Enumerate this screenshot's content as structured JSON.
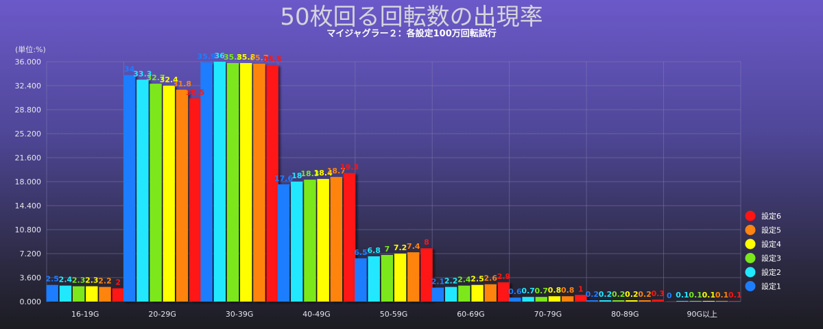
{
  "chart_data": {
    "type": "bar",
    "title": "50枚回る回転数の出現率",
    "subtitle": "マイジャグラー２：各設定100万回転試行",
    "ylabel": "(単位:%)",
    "xlabel": "",
    "ylim": [
      0,
      36
    ],
    "yticks": [
      "0.000",
      "3.600",
      "7.200",
      "10.800",
      "14.400",
      "18.000",
      "21.600",
      "25.200",
      "28.800",
      "32.400",
      "36.000"
    ],
    "grid": true,
    "legend_position": "right",
    "categories": [
      "16-19G",
      "20-29G",
      "30-39G",
      "40-49G",
      "50-59G",
      "60-69G",
      "70-79G",
      "80-89G",
      "90G以上"
    ],
    "series": [
      {
        "name": "設定1",
        "color": "#1e7dff",
        "values": [
          2.5,
          34,
          35.9,
          17.6,
          6.5,
          2.1,
          0.6,
          0.2,
          0
        ],
        "labels": [
          "2.5",
          "34",
          "35.9",
          "17.6",
          "6.5",
          "2.1",
          "0.6",
          "0.2",
          "0"
        ]
      },
      {
        "name": "設定2",
        "color": "#22e8ff",
        "values": [
          2.4,
          33.3,
          36,
          18,
          6.8,
          2.2,
          0.7,
          0.2,
          0.1
        ],
        "labels": [
          "2.4",
          "33.3",
          "36",
          "18",
          "6.8",
          "2.2",
          "0.7",
          "0.2",
          "0.1"
        ]
      },
      {
        "name": "設定3",
        "color": "#7be81c",
        "values": [
          2.3,
          32.7,
          35.8,
          18.3,
          7,
          2.4,
          0.7,
          0.2,
          0.1
        ],
        "labels": [
          "2.3",
          "32.7",
          "35.8",
          "18.3",
          "7",
          "2.4",
          "0.7",
          "0.2",
          "0.1"
        ]
      },
      {
        "name": "設定4",
        "color": "#ffff00",
        "values": [
          2.3,
          32.4,
          35.8,
          18.4,
          7.2,
          2.5,
          0.8,
          0.2,
          0.1
        ],
        "labels": [
          "2.3",
          "32.4",
          "35.8",
          "18.4",
          "7.2",
          "2.5",
          "0.8",
          "0.2",
          "0.1"
        ]
      },
      {
        "name": "設定5",
        "color": "#ff8410",
        "values": [
          2.2,
          31.8,
          35.7,
          18.7,
          7.4,
          2.6,
          0.8,
          0.2,
          0.1
        ],
        "labels": [
          "2.2",
          "31.8",
          "35.7",
          "18.7",
          "7.4",
          "2.6",
          "0.8",
          "0.2",
          "0.1"
        ]
      },
      {
        "name": "設定6",
        "color": "#ff1414",
        "values": [
          2,
          30.5,
          35.5,
          19.3,
          8,
          2.9,
          1,
          0.3,
          0.1
        ],
        "labels": [
          "2",
          "30.5",
          "35.5",
          "19.3",
          "8",
          "2.9",
          "1",
          "0.3",
          "0.1"
        ]
      }
    ]
  }
}
